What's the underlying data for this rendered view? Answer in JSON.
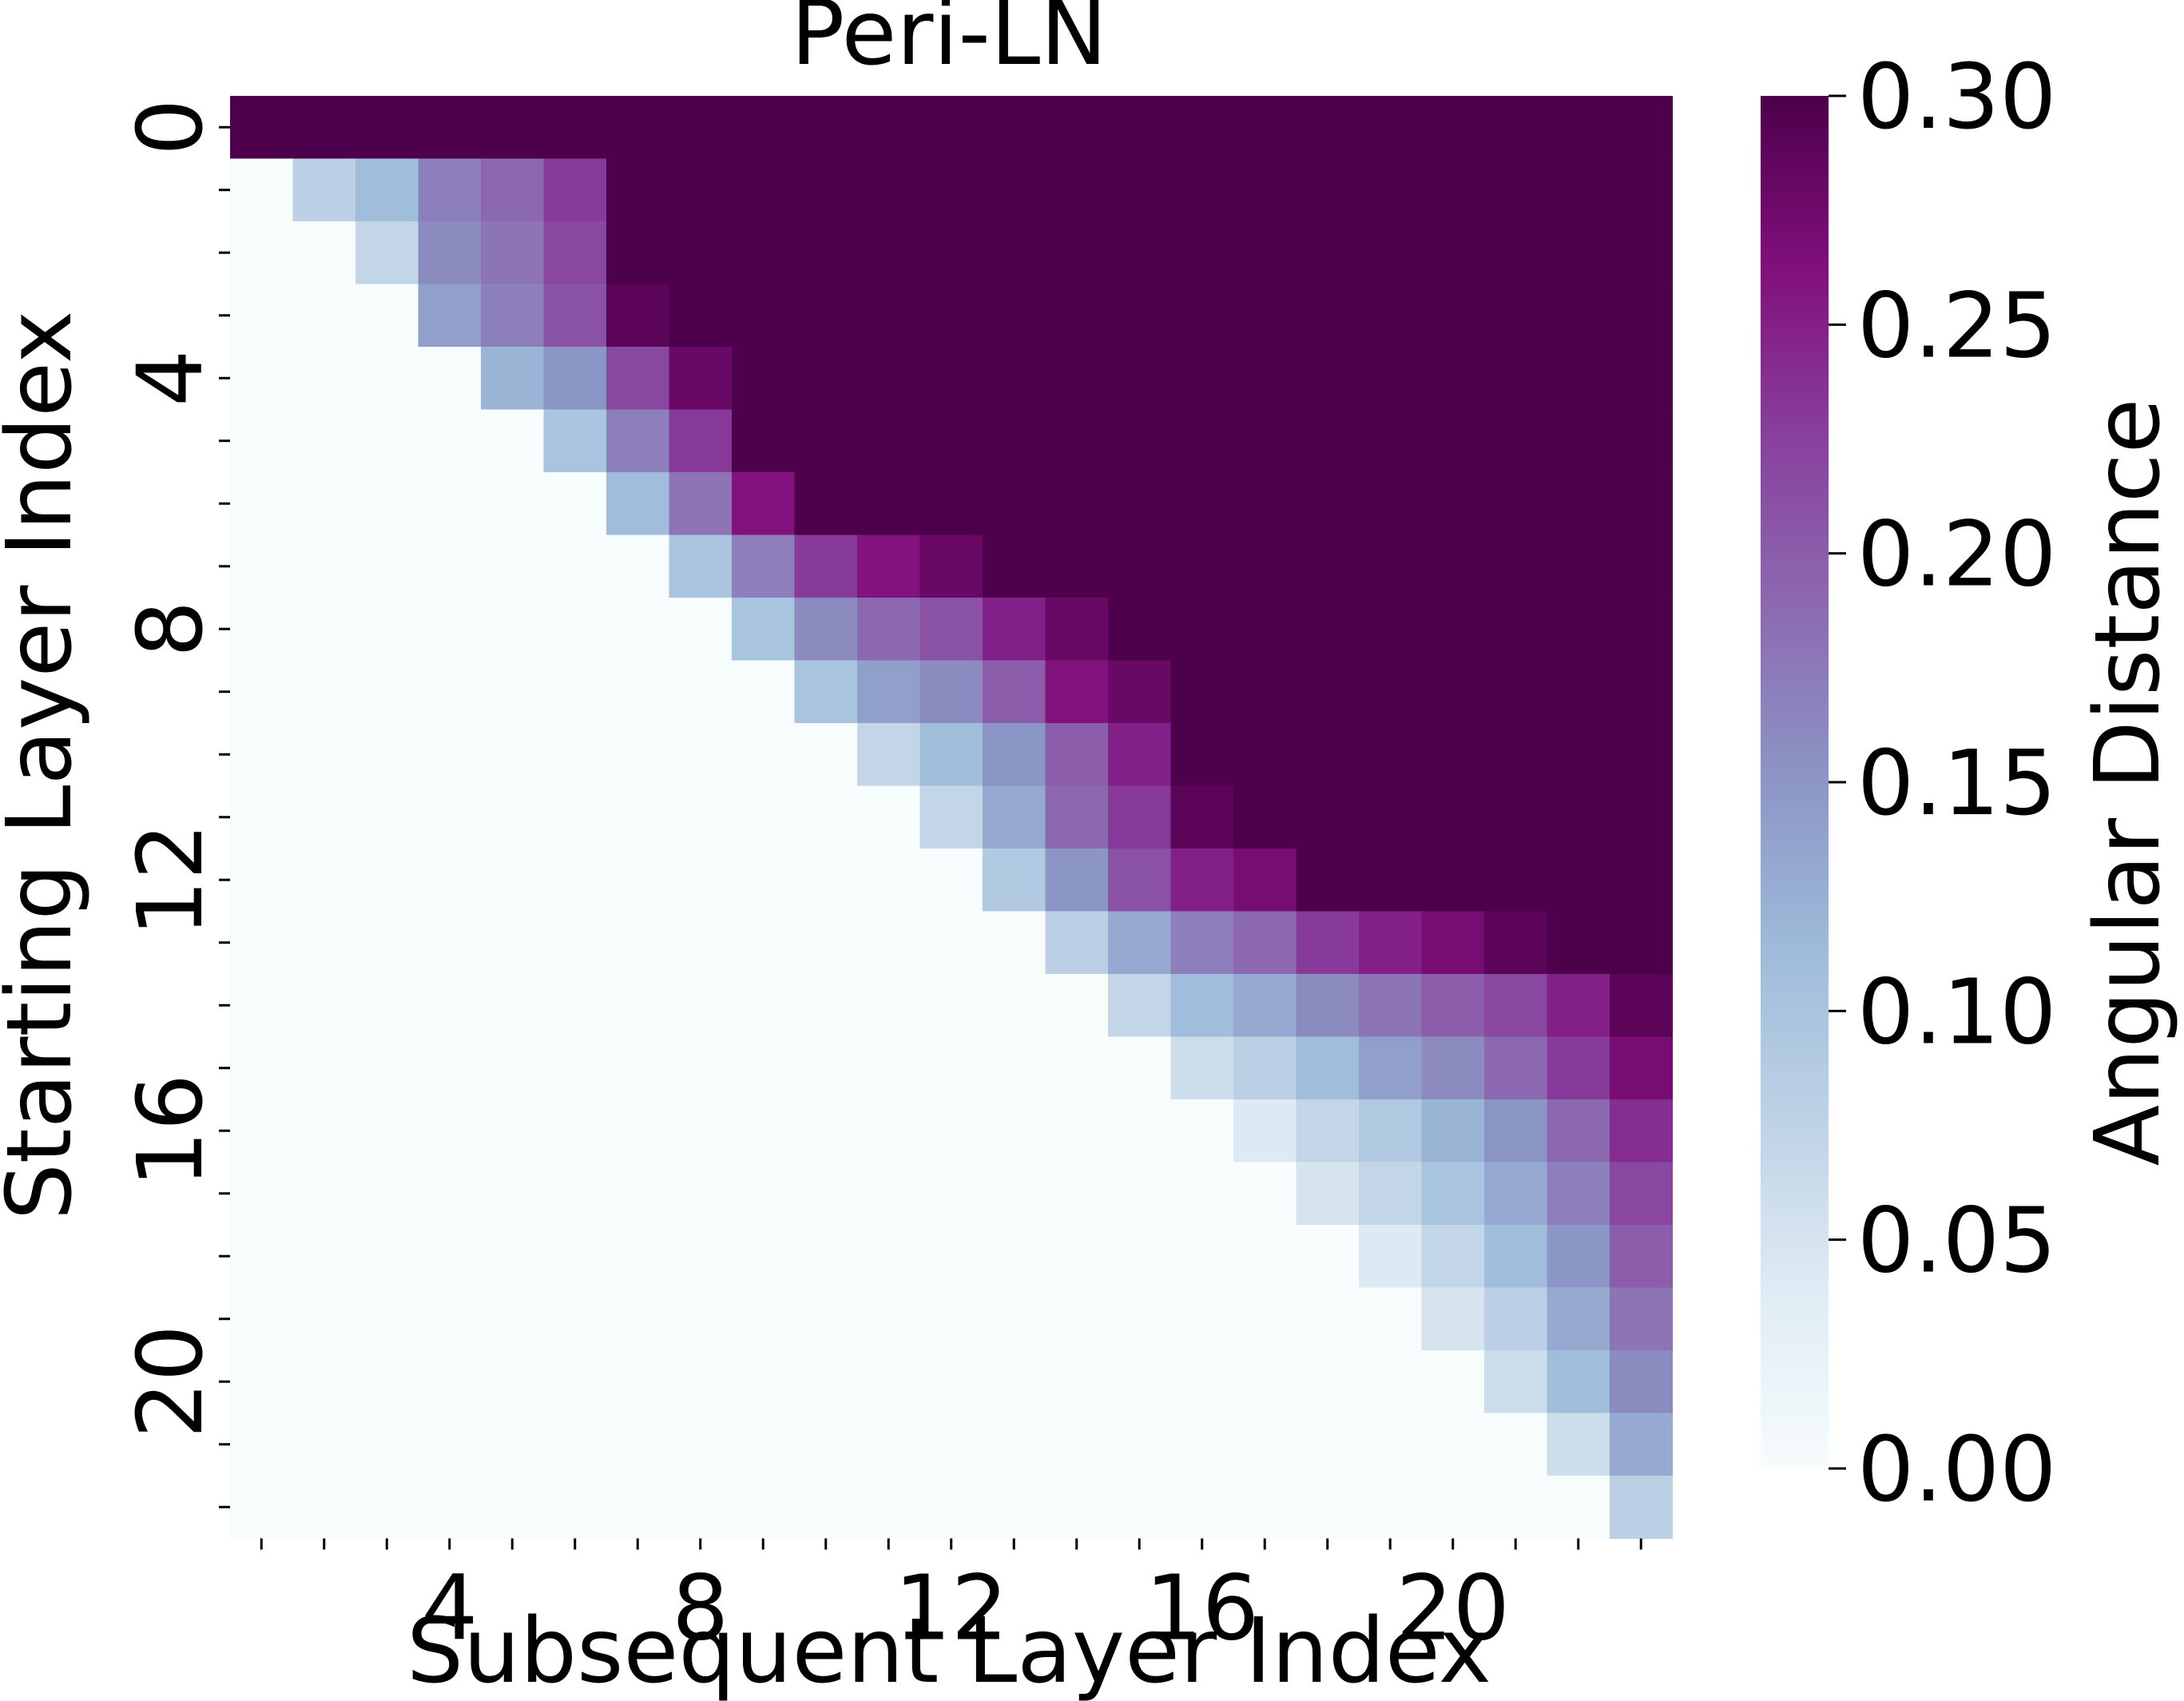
{
  "chart_data": {
    "type": "heatmap",
    "title": "Peri-LN",
    "xlabel": "Subsequent Layer Index",
    "ylabel": "Starting Layer Index",
    "colorbar_label": "Angular Distance",
    "colormap": "BuPu",
    "vmin": 0.0,
    "vmax": 0.3,
    "grid": false,
    "n_rows": 23,
    "n_cols": 23,
    "x_ticks": [
      1,
      2,
      3,
      4,
      5,
      6,
      7,
      8,
      9,
      10,
      11,
      12,
      13,
      14,
      15,
      16,
      17,
      18,
      19,
      20,
      21,
      22,
      23
    ],
    "x_tick_labels": [
      {
        "value": 4,
        "label": "4"
      },
      {
        "value": 8,
        "label": "8"
      },
      {
        "value": 12,
        "label": "12"
      },
      {
        "value": 16,
        "label": "16"
      },
      {
        "value": 20,
        "label": "20"
      }
    ],
    "y_ticks": [
      0,
      1,
      2,
      3,
      4,
      5,
      6,
      7,
      8,
      9,
      10,
      11,
      12,
      13,
      14,
      15,
      16,
      17,
      18,
      19,
      20,
      21,
      22
    ],
    "y_tick_labels": [
      {
        "value": 0,
        "label": "0"
      },
      {
        "value": 4,
        "label": "4"
      },
      {
        "value": 8,
        "label": "8"
      },
      {
        "value": 12,
        "label": "12"
      },
      {
        "value": 16,
        "label": "16"
      },
      {
        "value": 20,
        "label": "20"
      }
    ],
    "colorbar_ticks": [
      "0.00",
      "0.05",
      "0.10",
      "0.15",
      "0.20",
      "0.25",
      "0.30"
    ],
    "values": [
      [
        0.3,
        0.3,
        0.3,
        0.3,
        0.3,
        0.3,
        0.3,
        0.3,
        0.3,
        0.3,
        0.3,
        0.3,
        0.3,
        0.3,
        0.3,
        0.3,
        0.3,
        0.3,
        0.3,
        0.3,
        0.3,
        0.3,
        0.3
      ],
      [
        0.0,
        0.08,
        0.11,
        0.17,
        0.19,
        0.23,
        0.3,
        0.3,
        0.3,
        0.3,
        0.3,
        0.3,
        0.3,
        0.3,
        0.3,
        0.3,
        0.3,
        0.3,
        0.3,
        0.3,
        0.3,
        0.3,
        0.3
      ],
      [
        0.0,
        0.0,
        0.07,
        0.16,
        0.18,
        0.22,
        0.3,
        0.3,
        0.3,
        0.3,
        0.3,
        0.3,
        0.3,
        0.3,
        0.3,
        0.3,
        0.3,
        0.3,
        0.3,
        0.3,
        0.3,
        0.3,
        0.3
      ],
      [
        0.0,
        0.0,
        0.0,
        0.14,
        0.17,
        0.21,
        0.29,
        0.3,
        0.3,
        0.3,
        0.3,
        0.3,
        0.3,
        0.3,
        0.3,
        0.3,
        0.3,
        0.3,
        0.3,
        0.3,
        0.3,
        0.3,
        0.3
      ],
      [
        0.0,
        0.0,
        0.0,
        0.0,
        0.12,
        0.15,
        0.22,
        0.28,
        0.3,
        0.3,
        0.3,
        0.3,
        0.3,
        0.3,
        0.3,
        0.3,
        0.3,
        0.3,
        0.3,
        0.3,
        0.3,
        0.3,
        0.3
      ],
      [
        0.0,
        0.0,
        0.0,
        0.0,
        0.0,
        0.1,
        0.17,
        0.23,
        0.3,
        0.3,
        0.3,
        0.3,
        0.3,
        0.3,
        0.3,
        0.3,
        0.3,
        0.3,
        0.3,
        0.3,
        0.3,
        0.3,
        0.3
      ],
      [
        0.0,
        0.0,
        0.0,
        0.0,
        0.0,
        0.0,
        0.11,
        0.18,
        0.26,
        0.3,
        0.3,
        0.3,
        0.3,
        0.3,
        0.3,
        0.3,
        0.3,
        0.3,
        0.3,
        0.3,
        0.3,
        0.3,
        0.3
      ],
      [
        0.0,
        0.0,
        0.0,
        0.0,
        0.0,
        0.0,
        0.0,
        0.1,
        0.17,
        0.23,
        0.26,
        0.28,
        0.3,
        0.3,
        0.3,
        0.3,
        0.3,
        0.3,
        0.3,
        0.3,
        0.3,
        0.3,
        0.3
      ],
      [
        0.0,
        0.0,
        0.0,
        0.0,
        0.0,
        0.0,
        0.0,
        0.0,
        0.1,
        0.16,
        0.19,
        0.21,
        0.25,
        0.28,
        0.3,
        0.3,
        0.3,
        0.3,
        0.3,
        0.3,
        0.3,
        0.3,
        0.3
      ],
      [
        0.0,
        0.0,
        0.0,
        0.0,
        0.0,
        0.0,
        0.0,
        0.0,
        0.0,
        0.1,
        0.14,
        0.16,
        0.2,
        0.26,
        0.28,
        0.3,
        0.3,
        0.3,
        0.3,
        0.3,
        0.3,
        0.3,
        0.3
      ],
      [
        0.0,
        0.0,
        0.0,
        0.0,
        0.0,
        0.0,
        0.0,
        0.0,
        0.0,
        0.0,
        0.07,
        0.11,
        0.15,
        0.2,
        0.25,
        0.3,
        0.3,
        0.3,
        0.3,
        0.3,
        0.3,
        0.3,
        0.3
      ],
      [
        0.0,
        0.0,
        0.0,
        0.0,
        0.0,
        0.0,
        0.0,
        0.0,
        0.0,
        0.0,
        0.0,
        0.07,
        0.13,
        0.19,
        0.23,
        0.29,
        0.3,
        0.3,
        0.3,
        0.3,
        0.3,
        0.3,
        0.3
      ],
      [
        0.0,
        0.0,
        0.0,
        0.0,
        0.0,
        0.0,
        0.0,
        0.0,
        0.0,
        0.0,
        0.0,
        0.0,
        0.09,
        0.15,
        0.21,
        0.25,
        0.27,
        0.3,
        0.3,
        0.3,
        0.3,
        0.3,
        0.3
      ],
      [
        0.0,
        0.0,
        0.0,
        0.0,
        0.0,
        0.0,
        0.0,
        0.0,
        0.0,
        0.0,
        0.0,
        0.0,
        0.0,
        0.08,
        0.13,
        0.17,
        0.19,
        0.23,
        0.25,
        0.27,
        0.29,
        0.3,
        0.3
      ],
      [
        0.0,
        0.0,
        0.0,
        0.0,
        0.0,
        0.0,
        0.0,
        0.0,
        0.0,
        0.0,
        0.0,
        0.0,
        0.0,
        0.0,
        0.07,
        0.11,
        0.13,
        0.16,
        0.18,
        0.2,
        0.22,
        0.25,
        0.29
      ],
      [
        0.0,
        0.0,
        0.0,
        0.0,
        0.0,
        0.0,
        0.0,
        0.0,
        0.0,
        0.0,
        0.0,
        0.0,
        0.0,
        0.0,
        0.0,
        0.06,
        0.08,
        0.11,
        0.14,
        0.16,
        0.19,
        0.23,
        0.27
      ],
      [
        0.0,
        0.0,
        0.0,
        0.0,
        0.0,
        0.0,
        0.0,
        0.0,
        0.0,
        0.0,
        0.0,
        0.0,
        0.0,
        0.0,
        0.0,
        0.0,
        0.04,
        0.07,
        0.09,
        0.12,
        0.15,
        0.19,
        0.24
      ],
      [
        0.0,
        0.0,
        0.0,
        0.0,
        0.0,
        0.0,
        0.0,
        0.0,
        0.0,
        0.0,
        0.0,
        0.0,
        0.0,
        0.0,
        0.0,
        0.0,
        0.0,
        0.05,
        0.07,
        0.1,
        0.13,
        0.17,
        0.22
      ],
      [
        0.0,
        0.0,
        0.0,
        0.0,
        0.0,
        0.0,
        0.0,
        0.0,
        0.0,
        0.0,
        0.0,
        0.0,
        0.0,
        0.0,
        0.0,
        0.0,
        0.0,
        0.0,
        0.04,
        0.07,
        0.11,
        0.15,
        0.2
      ],
      [
        0.0,
        0.0,
        0.0,
        0.0,
        0.0,
        0.0,
        0.0,
        0.0,
        0.0,
        0.0,
        0.0,
        0.0,
        0.0,
        0.0,
        0.0,
        0.0,
        0.0,
        0.0,
        0.0,
        0.05,
        0.08,
        0.13,
        0.18
      ],
      [
        0.0,
        0.0,
        0.0,
        0.0,
        0.0,
        0.0,
        0.0,
        0.0,
        0.0,
        0.0,
        0.0,
        0.0,
        0.0,
        0.0,
        0.0,
        0.0,
        0.0,
        0.0,
        0.0,
        0.0,
        0.06,
        0.11,
        0.16
      ],
      [
        0.0,
        0.0,
        0.0,
        0.0,
        0.0,
        0.0,
        0.0,
        0.0,
        0.0,
        0.0,
        0.0,
        0.0,
        0.0,
        0.0,
        0.0,
        0.0,
        0.0,
        0.0,
        0.0,
        0.0,
        0.0,
        0.06,
        0.13
      ],
      [
        0.0,
        0.0,
        0.0,
        0.0,
        0.0,
        0.0,
        0.0,
        0.0,
        0.0,
        0.0,
        0.0,
        0.0,
        0.0,
        0.0,
        0.0,
        0.0,
        0.0,
        0.0,
        0.0,
        0.0,
        0.0,
        0.0,
        0.08
      ]
    ]
  }
}
